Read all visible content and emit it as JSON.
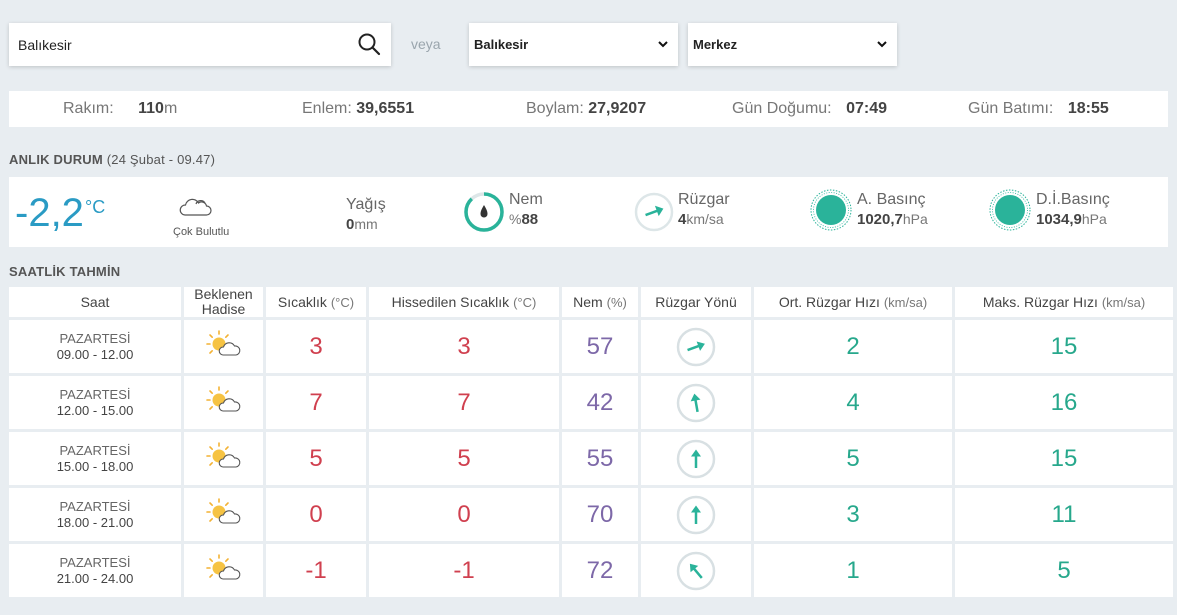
{
  "search": {
    "value": "Balıkesir",
    "veya": "veya"
  },
  "selects": {
    "il": "Balıkesir",
    "ilce": "Merkez"
  },
  "info": {
    "rakim_label": "Rakım:",
    "rakim_value": "110",
    "rakim_unit": "m",
    "enlem_label": "Enlem:",
    "enlem_value": "39,6551",
    "boylam_label": "Boylam:",
    "boylam_value": "27,9207",
    "gundogumu_label": "Gün Doğumu:",
    "gundogumu_value": "07:49",
    "gunbatimi_label": "Gün Batımı:",
    "gunbatimi_value": "18:55"
  },
  "current": {
    "title": "ANLIK DURUM",
    "subtitle_open": " (",
    "subtitle_date": "24 Şubat - 09.47",
    "subtitle_close": ")",
    "temp": "-2,2",
    "temp_unit": "°C",
    "condition": "Çok Bulutlu",
    "rain_label": "Yağış",
    "rain_value": "0",
    "rain_unit": "mm",
    "hum_label": "Nem",
    "hum_prefix": "%",
    "hum_value": "88",
    "wind_label": "Rüzgar",
    "wind_value": "4",
    "wind_unit": "km/sa",
    "pressure_label": "A. Basınç",
    "pressure_value": "1020,7",
    "pressure_unit": "hPa",
    "sea_pressure_label": "D.İ.Basınç",
    "sea_pressure_value": "1034,9",
    "sea_pressure_unit": "hPa",
    "accent_blue": "#2a9bc4",
    "accent_teal": "#2ab39a"
  },
  "forecast": {
    "title": "SAATLİK TAHMİN",
    "headers": {
      "saat": "Saat",
      "hadise": "Beklenen Hadise",
      "sicaklik": "Sıcaklık",
      "sicaklik_unit": "(°C)",
      "hissedilen": "Hissedilen Sıcaklık",
      "hissedilen_unit": "(°C)",
      "nem": "Nem",
      "nem_unit": "(%)",
      "yon": "Rüzgar Yönü",
      "ort": "Ort. Rüzgar Hızı",
      "ort_unit": "(km/sa)",
      "maks": "Maks. Rüzgar Hızı",
      "maks_unit": "(km/sa)"
    },
    "rows": [
      {
        "day": "PAZARTESİ",
        "time": "09.00 - 12.00",
        "icon": "partly-cloudy-sun-icon",
        "temp": "3",
        "feels": "3",
        "hum": "57",
        "wind_dir_deg": 250,
        "wind_avg": "2",
        "wind_max": "15"
      },
      {
        "day": "PAZARTESİ",
        "time": "12.00 - 15.00",
        "icon": "partly-cloudy-sun-icon",
        "temp": "7",
        "feels": "7",
        "hum": "42",
        "wind_dir_deg": 170,
        "wind_avg": "4",
        "wind_max": "16"
      },
      {
        "day": "PAZARTESİ",
        "time": "15.00 - 18.00",
        "icon": "partly-cloudy-sun-icon",
        "temp": "5",
        "feels": "5",
        "hum": "55",
        "wind_dir_deg": 180,
        "wind_avg": "5",
        "wind_max": "15"
      },
      {
        "day": "PAZARTESİ",
        "time": "18.00 - 21.00",
        "icon": "partly-cloudy-sun-icon",
        "temp": "0",
        "feels": "0",
        "hum": "70",
        "wind_dir_deg": 180,
        "wind_avg": "3",
        "wind_max": "11"
      },
      {
        "day": "PAZARTESİ",
        "time": "21.00 - 24.00",
        "icon": "partly-cloudy-sun-icon",
        "temp": "-1",
        "feels": "-1",
        "hum": "72",
        "wind_dir_deg": 140,
        "wind_avg": "1",
        "wind_max": "5"
      }
    ]
  }
}
